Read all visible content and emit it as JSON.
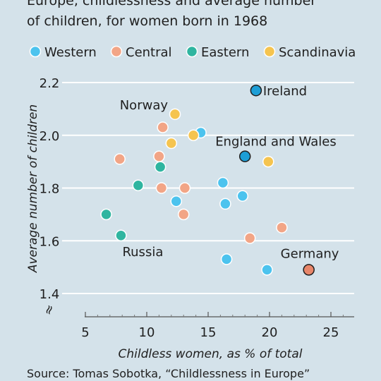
{
  "title_lines": [
    "Europe, childlessness and average number",
    "of children, for women born in 1968"
  ],
  "source": "Source: Tomas Sobotka, “Childlessness in Europe”",
  "colors": {
    "Western": "#4cc3ee",
    "Central": "#f2a586",
    "Eastern": "#2fb5a0",
    "Scandinavia": "#f5c44f",
    "Western_highlight": "#1d9ed6",
    "Central_highlight": "#e8866a",
    "grid": "#ffffff",
    "text": "#1f1f1f"
  },
  "chart_data": {
    "type": "scatter",
    "title": "Europe, childlessness and average number of children, for women born in 1968",
    "xlabel": "Childless women, as % of total",
    "ylabel": "Average number of children",
    "xlim": [
      5,
      27
    ],
    "ylim": [
      1.4,
      2.25
    ],
    "xticks": [
      "5",
      "10",
      "15",
      "20",
      "25"
    ],
    "yticks": [
      "1.4",
      "1.6",
      "1.8",
      "2.0",
      "2.2"
    ],
    "axis_break": "≈",
    "legend": [
      "Western",
      "Central",
      "Eastern",
      "Scandinavia"
    ],
    "legend_placement": "top",
    "series": [
      {
        "name": "Western",
        "points": [
          {
            "x": 18.9,
            "y": 2.17,
            "label": "Ireland",
            "highlight": true
          },
          {
            "x": 14.4,
            "y": 2.01
          },
          {
            "x": 18.0,
            "y": 1.92,
            "label": "England and Wales",
            "highlight": true
          },
          {
            "x": 16.2,
            "y": 1.82
          },
          {
            "x": 17.8,
            "y": 1.77
          },
          {
            "x": 12.4,
            "y": 1.75
          },
          {
            "x": 16.4,
            "y": 1.74
          },
          {
            "x": 16.5,
            "y": 1.53
          },
          {
            "x": 19.8,
            "y": 1.49
          }
        ]
      },
      {
        "name": "Central",
        "points": [
          {
            "x": 11.3,
            "y": 2.03
          },
          {
            "x": 7.8,
            "y": 1.91
          },
          {
            "x": 11.0,
            "y": 1.92
          },
          {
            "x": 11.2,
            "y": 1.8
          },
          {
            "x": 13.1,
            "y": 1.8
          },
          {
            "x": 13.0,
            "y": 1.7
          },
          {
            "x": 21.0,
            "y": 1.65
          },
          {
            "x": 18.4,
            "y": 1.61
          },
          {
            "x": 23.2,
            "y": 1.49,
            "label": "Germany",
            "highlight": true
          }
        ]
      },
      {
        "name": "Eastern",
        "points": [
          {
            "x": 11.1,
            "y": 1.88
          },
          {
            "x": 9.3,
            "y": 1.81
          },
          {
            "x": 6.7,
            "y": 1.7
          },
          {
            "x": 7.9,
            "y": 1.62,
            "label": "Russia"
          }
        ]
      },
      {
        "name": "Scandinavia",
        "points": [
          {
            "x": 12.3,
            "y": 2.08,
            "label": "Norway"
          },
          {
            "x": 13.8,
            "y": 2.0
          },
          {
            "x": 12.0,
            "y": 1.97
          },
          {
            "x": 19.9,
            "y": 1.9
          }
        ]
      }
    ]
  }
}
